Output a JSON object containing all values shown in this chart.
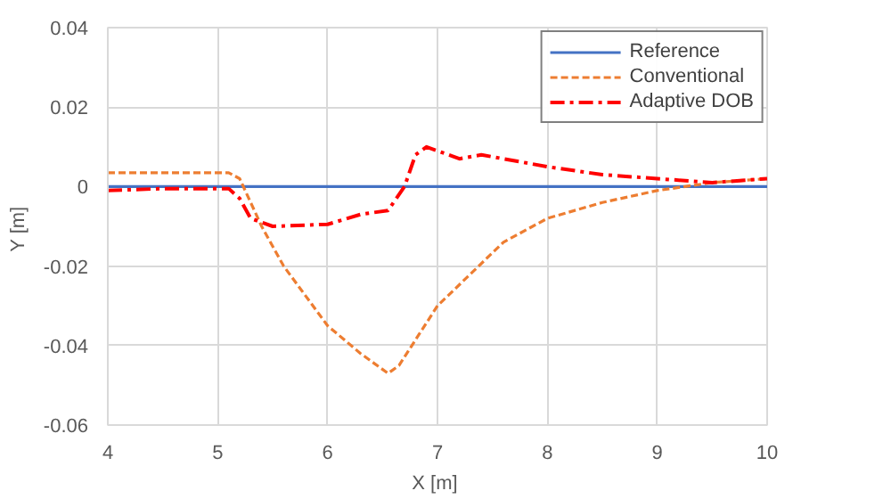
{
  "chart_data": {
    "type": "line",
    "xlabel": "X  [m]",
    "ylabel": "Y  [m]",
    "xlim": [
      4,
      10
    ],
    "ylim": [
      -0.06,
      0.04
    ],
    "xticks": [
      4,
      5,
      6,
      7,
      8,
      9,
      10
    ],
    "yticks": [
      -0.06,
      -0.04,
      -0.02,
      0,
      0.02,
      0.04
    ],
    "grid": true,
    "legend": "top right",
    "series": [
      {
        "name": "Reference",
        "color": "#4472c4",
        "line_style": "solid",
        "x": [
          4,
          10
        ],
        "values": [
          0,
          0
        ]
      },
      {
        "name": "Conventional",
        "color": "#ed7d31",
        "line_style": "dashed",
        "x": [
          4,
          5.1,
          5.2,
          5.4,
          5.6,
          6.0,
          6.3,
          6.55,
          6.65,
          7.0,
          7.3,
          7.6,
          8.0,
          8.5,
          9.0,
          9.5,
          10
        ],
        "values": [
          0.0035,
          0.0035,
          0.002,
          -0.01,
          -0.02,
          -0.035,
          -0.042,
          -0.047,
          -0.045,
          -0.03,
          -0.022,
          -0.014,
          -0.008,
          -0.004,
          -0.001,
          0.001,
          0.002
        ]
      },
      {
        "name": "Adaptive DOB",
        "color": "#ff0000",
        "line_style": "dashdot",
        "x": [
          4,
          4.5,
          5.1,
          5.2,
          5.3,
          5.5,
          6.0,
          6.3,
          6.55,
          6.7,
          6.8,
          6.9,
          7.0,
          7.2,
          7.4,
          7.6,
          8.0,
          8.5,
          9.0,
          9.5,
          10
        ],
        "values": [
          -0.001,
          -0.0005,
          -0.0005,
          -0.003,
          -0.008,
          -0.01,
          -0.0095,
          -0.007,
          -0.006,
          0.0,
          0.008,
          0.01,
          0.009,
          0.007,
          0.008,
          0.007,
          0.005,
          0.003,
          0.002,
          0.001,
          0.002
        ]
      }
    ]
  }
}
